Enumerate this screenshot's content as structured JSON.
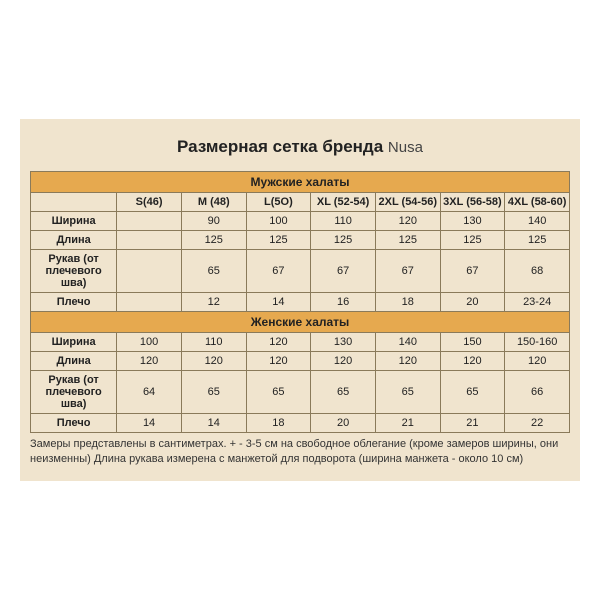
{
  "title_main": "Размерная сетка бренда",
  "title_brand": "Nusa",
  "section1": "Мужские халаты",
  "section2": "Женские халаты",
  "sizes": [
    "S(46)",
    "M (48)",
    "L(5О)",
    "XL (52-54)",
    "2XL (54-56)",
    "3XL (56-58)",
    "4XL (58-60)"
  ],
  "rows_men": [
    {
      "label": "Ширина",
      "vals": [
        "",
        "90",
        "100",
        "110",
        "120",
        "130",
        "140"
      ]
    },
    {
      "label": "Длина",
      "vals": [
        "",
        "125",
        "125",
        "125",
        "125",
        "125",
        "125"
      ]
    },
    {
      "label": "Рукав (от плечевого шва)",
      "vals": [
        "",
        "65",
        "67",
        "67",
        "67",
        "67",
        "68"
      ]
    },
    {
      "label": "Плечо",
      "vals": [
        "",
        "12",
        "14",
        "16",
        "18",
        "20",
        "23-24"
      ]
    }
  ],
  "rows_women": [
    {
      "label": "Ширина",
      "vals": [
        "100",
        "110",
        "120",
        "130",
        "140",
        "150",
        "150-160"
      ]
    },
    {
      "label": "Длина",
      "vals": [
        "120",
        "120",
        "120",
        "120",
        "120",
        "120",
        "120"
      ]
    },
    {
      "label": "Рукав (от плечевого шва)",
      "vals": [
        "64",
        "65",
        "65",
        "65",
        "65",
        "65",
        "66"
      ]
    },
    {
      "label": "Плечо",
      "vals": [
        "14",
        "14",
        "18",
        "20",
        "21",
        "21",
        "22"
      ]
    }
  ],
  "footnote": "Замеры представлены в сантиметрах. + - 3-5 см на свободное облегание (кроме замеров ширины, они неизменны) Длина рукава измерена с манжетой для подворота (ширина манжета - около 10 см)"
}
